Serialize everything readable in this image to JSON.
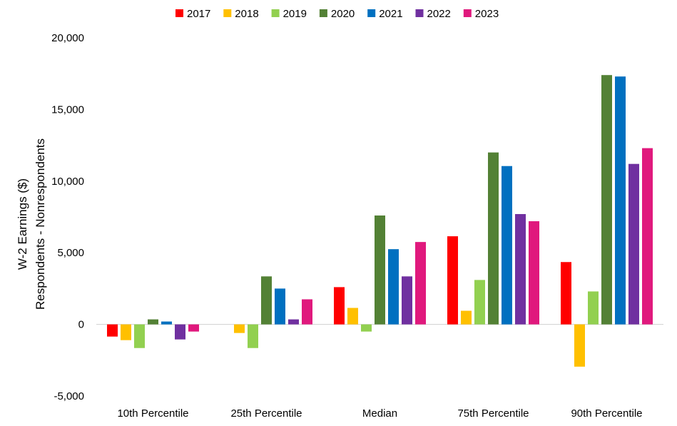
{
  "chart_data": {
    "type": "bar",
    "title": "",
    "ylabel_lines": [
      "W-2 Earnings ($)",
      "Respondents - Nonrespondents"
    ],
    "xlabel": "",
    "categories": [
      "10th Percentile",
      "25th Percentile",
      "Median",
      "75th Percentile",
      "90th Percentile"
    ],
    "ylim": [
      -5000,
      20000
    ],
    "yticks": [
      -5000,
      0,
      5000,
      10000,
      15000,
      20000
    ],
    "ytick_labels": [
      "-5,000",
      "0",
      "5,000",
      "10,000",
      "15,000",
      "20,000"
    ],
    "grid": false,
    "legend_position": "top",
    "series": [
      {
        "name": "2017",
        "color": "#FF0000",
        "values": [
          -850,
          0,
          2600,
          6150,
          4350
        ]
      },
      {
        "name": "2018",
        "color": "#FFC000",
        "values": [
          -1100,
          -600,
          1150,
          950,
          -2950
        ]
      },
      {
        "name": "2019",
        "color": "#92D050",
        "values": [
          -1650,
          -1650,
          -500,
          3100,
          2300
        ]
      },
      {
        "name": "2020",
        "color": "#538135",
        "values": [
          350,
          3350,
          7600,
          12000,
          17400
        ]
      },
      {
        "name": "2021",
        "color": "#0070C0",
        "values": [
          200,
          2500,
          5250,
          11050,
          17300
        ]
      },
      {
        "name": "2022",
        "color": "#7030A0",
        "values": [
          -1050,
          350,
          3350,
          7700,
          11200
        ]
      },
      {
        "name": "2023",
        "color": "#E0197D",
        "values": [
          -500,
          1750,
          5750,
          7200,
          12300
        ]
      }
    ]
  }
}
